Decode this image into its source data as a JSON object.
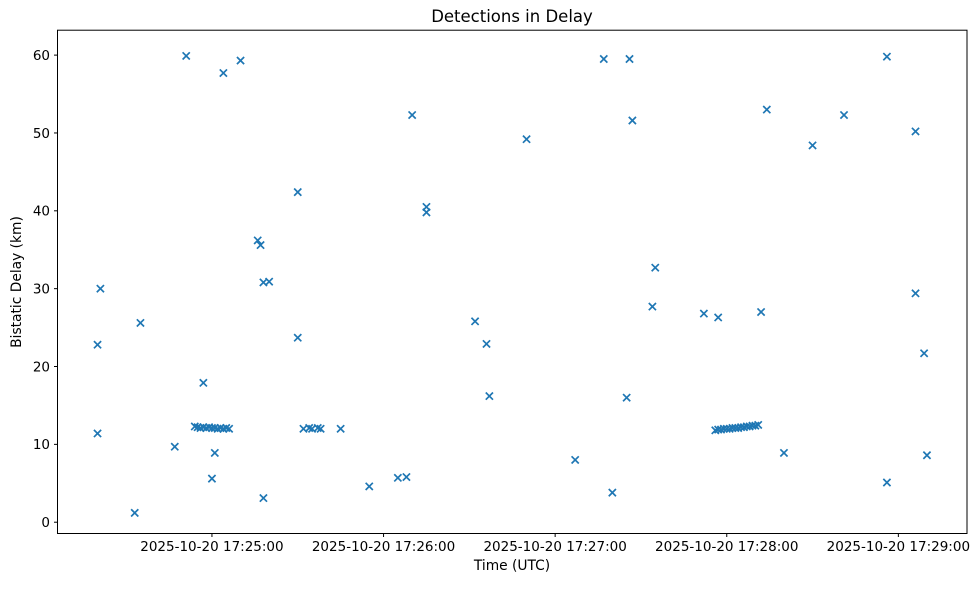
{
  "chart_data": {
    "type": "scatter",
    "title": "Detections in Delay",
    "xlabel": "Time (UTC)",
    "ylabel": "Bistatic Delay (km)",
    "date": "2025-10-20",
    "marker": "x",
    "marker_color": "#1f77b4",
    "axis_color": "#000000",
    "background_color": "#ffffff",
    "grid": false,
    "legend": false,
    "x_ticks": [
      "2025-10-20 17:25:00",
      "2025-10-20 17:26:00",
      "2025-10-20 17:27:00",
      "2025-10-20 17:28:00",
      "2025-10-20 17:29:00"
    ],
    "y_ticks": [
      0,
      10,
      20,
      30,
      40,
      50,
      60
    ],
    "xlim": [
      "17:24:06",
      "17:29:24"
    ],
    "ylim": [
      -1.45,
      63.2
    ],
    "points": [
      [
        "17:24:20",
        22.8
      ],
      [
        "17:24:20",
        11.4
      ],
      [
        "17:24:21",
        30.0
      ],
      [
        "17:24:33",
        1.2
      ],
      [
        "17:24:35",
        25.6
      ],
      [
        "17:24:47",
        9.7
      ],
      [
        "17:24:51",
        59.9
      ],
      [
        "17:24:54",
        12.3
      ],
      [
        "17:24:55",
        12.2
      ],
      [
        "17:24:56",
        12.1
      ],
      [
        "17:24:57",
        17.9
      ],
      [
        "17:24:57",
        12.2
      ],
      [
        "17:24:58",
        12.1
      ],
      [
        "17:24:59",
        12.2
      ],
      [
        "17:25:00",
        12.1
      ],
      [
        "17:25:00",
        5.6
      ],
      [
        "17:25:01",
        12.1
      ],
      [
        "17:25:01",
        8.9
      ],
      [
        "17:25:02",
        12.0
      ],
      [
        "17:25:03",
        12.1
      ],
      [
        "17:25:04",
        57.7
      ],
      [
        "17:25:04",
        12.0
      ],
      [
        "17:25:05",
        12.1
      ],
      [
        "17:25:06",
        12.0
      ],
      [
        "17:25:10",
        59.3
      ],
      [
        "17:25:16",
        36.2
      ],
      [
        "17:25:17",
        35.6
      ],
      [
        "17:25:18",
        30.8
      ],
      [
        "17:25:18",
        3.1
      ],
      [
        "17:25:20",
        30.9
      ],
      [
        "17:25:30",
        42.4
      ],
      [
        "17:25:30",
        23.7
      ],
      [
        "17:25:32",
        12.0
      ],
      [
        "17:25:34",
        12.1
      ],
      [
        "17:25:35",
        12.0
      ],
      [
        "17:25:37",
        12.1
      ],
      [
        "17:25:38",
        12.0
      ],
      [
        "17:25:45",
        12.0
      ],
      [
        "17:25:55",
        4.6
      ],
      [
        "17:26:05",
        5.7
      ],
      [
        "17:26:08",
        5.8
      ],
      [
        "17:26:10",
        52.3
      ],
      [
        "17:26:15",
        40.5
      ],
      [
        "17:26:15",
        39.8
      ],
      [
        "17:26:32",
        25.8
      ],
      [
        "17:26:36",
        22.9
      ],
      [
        "17:26:37",
        16.2
      ],
      [
        "17:26:50",
        49.2
      ],
      [
        "17:27:07",
        8.0
      ],
      [
        "17:27:17",
        59.5
      ],
      [
        "17:27:20",
        3.8
      ],
      [
        "17:27:25",
        16.0
      ],
      [
        "17:27:26",
        59.5
      ],
      [
        "17:27:27",
        51.6
      ],
      [
        "17:27:34",
        27.7
      ],
      [
        "17:27:35",
        32.7
      ],
      [
        "17:27:52",
        26.8
      ],
      [
        "17:27:56",
        11.8
      ],
      [
        "17:27:57",
        26.3
      ],
      [
        "17:27:57",
        11.9
      ],
      [
        "17:27:58",
        11.9
      ],
      [
        "17:27:59",
        12.0
      ],
      [
        "17:28:00",
        12.0
      ],
      [
        "17:28:01",
        12.0
      ],
      [
        "17:28:02",
        12.1
      ],
      [
        "17:28:03",
        12.1
      ],
      [
        "17:28:04",
        12.1
      ],
      [
        "17:28:05",
        12.2
      ],
      [
        "17:28:06",
        12.2
      ],
      [
        "17:28:07",
        12.3
      ],
      [
        "17:28:08",
        12.3
      ],
      [
        "17:28:09",
        12.4
      ],
      [
        "17:28:10",
        12.4
      ],
      [
        "17:28:11",
        12.5
      ],
      [
        "17:28:12",
        27.0
      ],
      [
        "17:28:14",
        53.0
      ],
      [
        "17:28:20",
        8.9
      ],
      [
        "17:28:30",
        48.4
      ],
      [
        "17:28:41",
        52.3
      ],
      [
        "17:28:56",
        59.8
      ],
      [
        "17:28:56",
        5.1
      ],
      [
        "17:29:06",
        50.2
      ],
      [
        "17:29:06",
        29.4
      ],
      [
        "17:29:09",
        21.7
      ],
      [
        "17:29:10",
        8.6
      ]
    ]
  }
}
